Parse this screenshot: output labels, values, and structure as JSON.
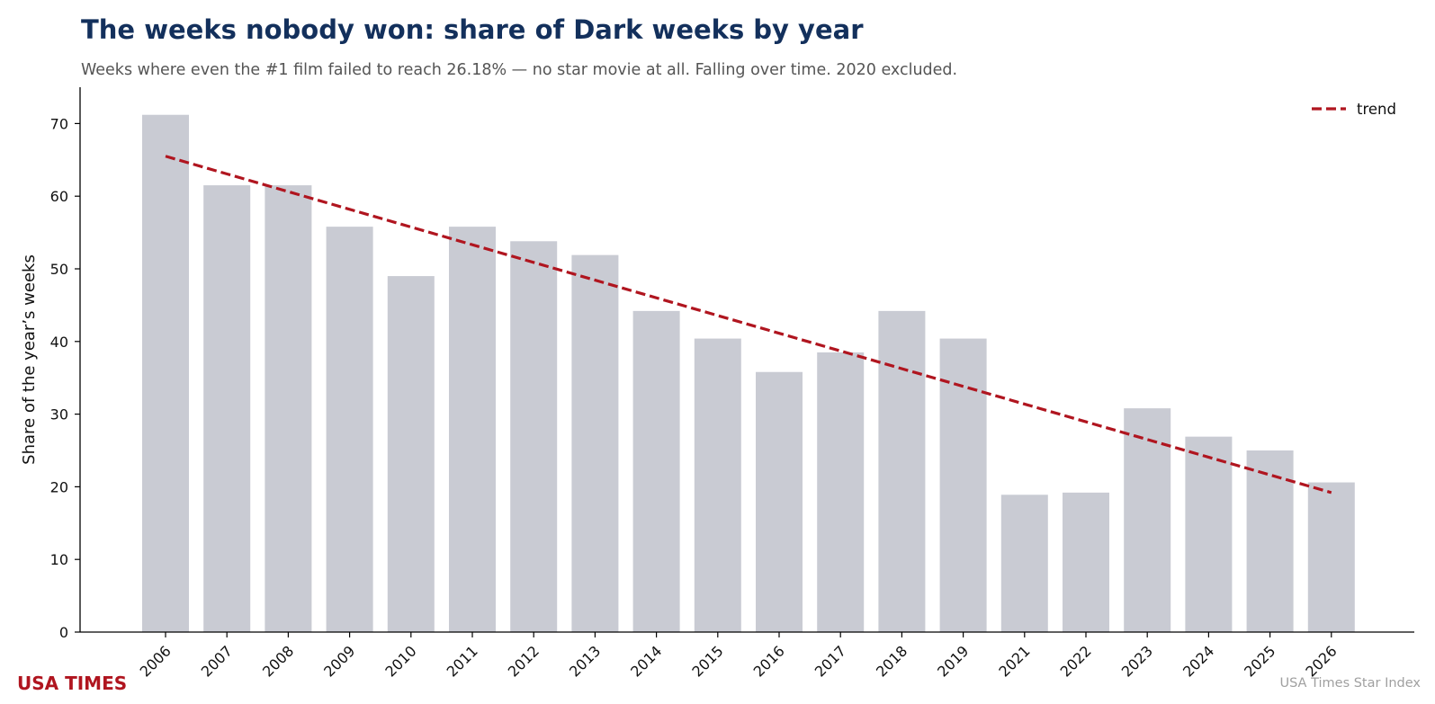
{
  "header": {
    "title": "The weeks nobody won: share of Dark weeks by year",
    "subtitle": "Weeks where even the #1 film failed to reach 26.18% — no star movie at all. Falling over time. 2020 excluded."
  },
  "footer": {
    "brand": "USA TIMES",
    "source": "USA Times Star Index"
  },
  "colors": {
    "bar": "#c9cbd3",
    "trend": "#b0151f",
    "title": "#13305c",
    "brand": "#b0151f"
  },
  "chart_data": {
    "type": "bar",
    "title": "The weeks nobody won: share of Dark weeks by year",
    "xlabel": "",
    "ylabel": "Share of the year’s weeks",
    "ylim": [
      0,
      75
    ],
    "yticks": [
      0,
      10,
      20,
      30,
      40,
      50,
      60,
      70
    ],
    "grid": false,
    "legend_position": "top-right",
    "categories": [
      "2006",
      "2007",
      "2008",
      "2009",
      "2010",
      "2011",
      "2012",
      "2013",
      "2014",
      "2015",
      "2016",
      "2017",
      "2018",
      "2019",
      "2021",
      "2022",
      "2023",
      "2024",
      "2025",
      "2026"
    ],
    "series": [
      {
        "type": "bar",
        "values": [
          71.2,
          61.5,
          61.5,
          55.8,
          49.0,
          55.8,
          53.8,
          51.9,
          44.2,
          40.4,
          35.8,
          38.5,
          44.2,
          40.4,
          18.9,
          19.2,
          30.8,
          26.9,
          25.0,
          20.6
        ]
      },
      {
        "name": "trend",
        "type": "line",
        "style": "dashed",
        "start": 65.5,
        "end": 19.2
      }
    ]
  }
}
